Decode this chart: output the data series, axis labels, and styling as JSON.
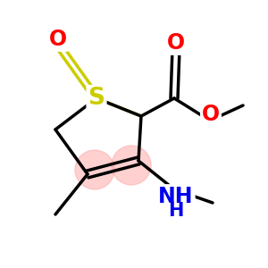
{
  "bg_color": "#ffffff",
  "atom_colors": {
    "C": "#000000",
    "S": "#cccc00",
    "O": "#ff0000",
    "N": "#0000ee",
    "H": "#000000"
  },
  "highlight_color": "#ffaaaa",
  "highlight_alpha": 0.55,
  "figsize": [
    3.0,
    3.0
  ],
  "dpi": 100,
  "lw": 2.5,
  "font_size_atom": 17,
  "font_size_group": 13
}
